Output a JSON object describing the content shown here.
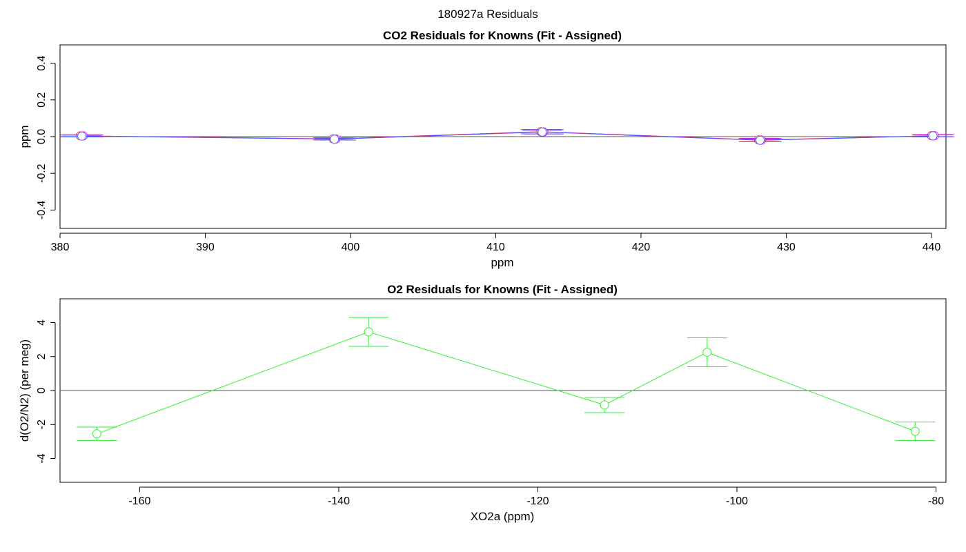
{
  "figure_title": "180927a  Residuals",
  "chart_data": [
    {
      "type": "line",
      "title": "CO2 Residuals for Knowns (Fit - Assigned)",
      "xlabel": "ppm",
      "ylabel": "ppm",
      "xlim": [
        380,
        441
      ],
      "ylim": [
        -0.5,
        0.5
      ],
      "x_ticks": [
        "380",
        "390",
        "400",
        "410",
        "420",
        "430",
        "440"
      ],
      "x_tick_values": [
        380,
        390,
        400,
        410,
        420,
        430,
        440
      ],
      "y_ticks": [
        "-0.4",
        "-0.2",
        "0.0",
        "0.2",
        "0.4"
      ],
      "y_tick_values": [
        -0.4,
        -0.2,
        0.0,
        0.2,
        0.4
      ],
      "zero_line": true,
      "series": [
        {
          "color": "#ff3030",
          "x": [
            381.4,
            398.8,
            413.1,
            428.1,
            440.0
          ],
          "y": [
            0.004,
            -0.012,
            0.027,
            -0.018,
            0.005
          ],
          "err": [
            0.006,
            0.006,
            0.012,
            0.009,
            0.006
          ]
        },
        {
          "color": "#ff00ff",
          "x": [
            381.6,
            399.0,
            413.3,
            428.3,
            440.2
          ],
          "y": [
            0.004,
            -0.013,
            0.026,
            -0.019,
            0.005
          ],
          "err": [
            0.006,
            0.006,
            0.012,
            0.009,
            0.006
          ]
        },
        {
          "color": "#4060ff",
          "x": [
            381.5,
            398.9,
            413.2,
            428.2,
            440.1
          ],
          "y": [
            0.003,
            -0.014,
            0.025,
            -0.02,
            0.004
          ],
          "err": [
            0.005,
            0.005,
            0.01,
            0.008,
            0.005
          ]
        }
      ]
    },
    {
      "type": "line",
      "title": "O2 Residuals for Knowns (Fit - Assigned)",
      "xlabel": "XO2a (ppm)",
      "ylabel": "d(O2/N2) (per meg)",
      "xlim": [
        -168,
        -79
      ],
      "ylim": [
        -5.4,
        5.4
      ],
      "x_ticks": [
        "-160",
        "-140",
        "-120",
        "-100",
        "-80"
      ],
      "x_tick_values": [
        -160,
        -140,
        -120,
        -100,
        -80
      ],
      "y_ticks": [
        "-4",
        "-2",
        "0",
        "2",
        "4"
      ],
      "y_tick_values": [
        -4,
        -2,
        0,
        2,
        4
      ],
      "zero_line": true,
      "series": [
        {
          "color": "#33ee33",
          "x": [
            -164.3,
            -137.0,
            -113.3,
            -103.0,
            -82.1
          ],
          "y": [
            -2.55,
            3.45,
            -0.85,
            2.25,
            -2.4
          ],
          "err": [
            0.4,
            0.85,
            0.45,
            0.85,
            0.55
          ]
        }
      ]
    }
  ]
}
